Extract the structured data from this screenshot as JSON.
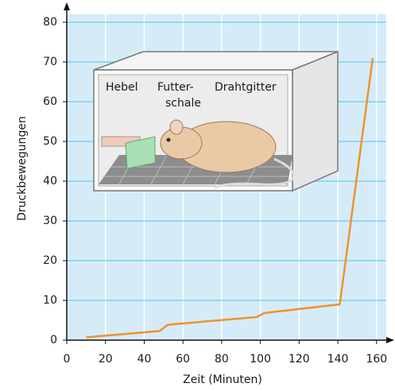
{
  "chart_data": {
    "type": "line",
    "x_label": "Zeit (Minuten)",
    "y_label": "Druckbewegungen",
    "x": [
      10,
      48,
      52,
      55,
      98,
      102,
      105,
      141,
      158
    ],
    "values": [
      0.7,
      2.3,
      3.8,
      4.0,
      5.8,
      6.8,
      7.0,
      9.0,
      71
    ],
    "color": "#f0922b",
    "xlim": [
      0,
      165
    ],
    "ylim": [
      0,
      82
    ],
    "xticks": [
      0,
      20,
      40,
      60,
      80,
      100,
      120,
      140,
      160
    ],
    "yticks": [
      0,
      10,
      20,
      30,
      40,
      50,
      60,
      70,
      80
    ],
    "grid": true
  },
  "illustration": {
    "labels": [
      "Hebel",
      "Futter-",
      "schale",
      "Drahtgitter"
    ]
  }
}
